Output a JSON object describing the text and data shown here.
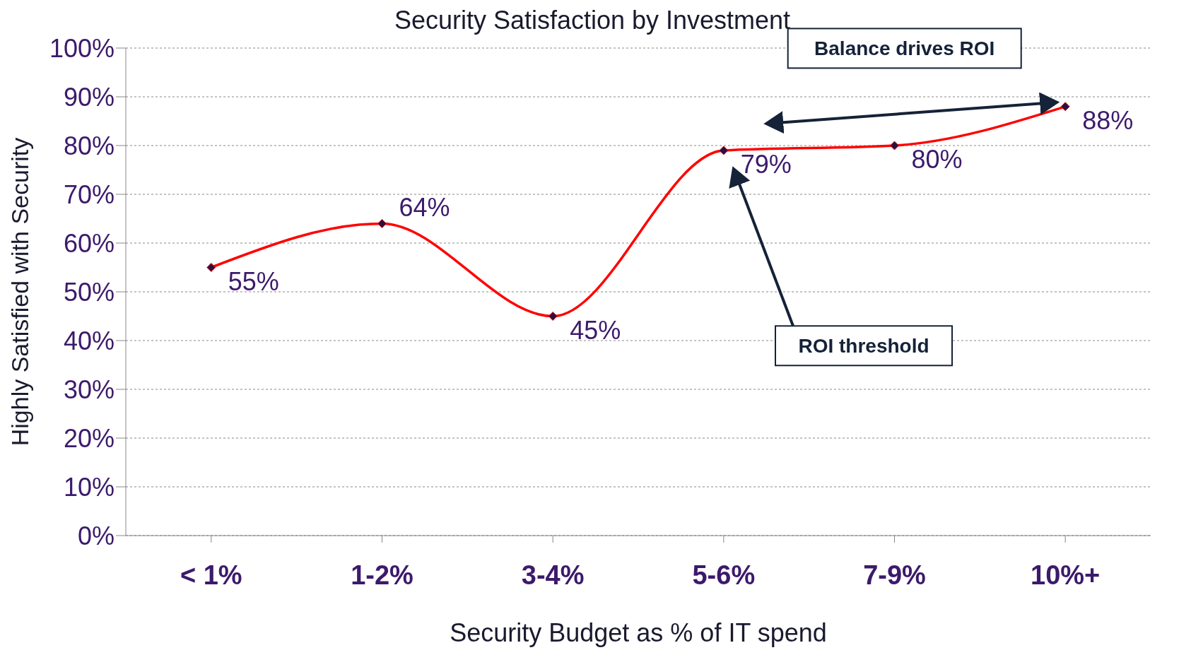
{
  "chart_data": {
    "type": "line",
    "title": "Security Satisfaction by Investment",
    "xlabel": "Security Budget as % of IT spend",
    "ylabel": "Highly Satisfied with Security",
    "categories": [
      "< 1%",
      "1-2%",
      "3-4%",
      "5-6%",
      "7-9%",
      "10%+"
    ],
    "series": [
      {
        "color": "#ff0000",
        "values": [
          55,
          64,
          45,
          79,
          80,
          88
        ],
        "value_labels": [
          "55%",
          "64%",
          "45%",
          "79%",
          "80%",
          "88%"
        ]
      }
    ],
    "ylim": [
      0,
      100
    ],
    "yticks": [
      {
        "value": 0,
        "label": "0%"
      },
      {
        "value": 10,
        "label": "10%"
      },
      {
        "value": 20,
        "label": "20%"
      },
      {
        "value": 30,
        "label": "30%"
      },
      {
        "value": 40,
        "label": "40%"
      },
      {
        "value": 50,
        "label": "50%"
      },
      {
        "value": 60,
        "label": "60%"
      },
      {
        "value": 70,
        "label": "70%"
      },
      {
        "value": 80,
        "label": "80%"
      },
      {
        "value": 90,
        "label": "90%"
      },
      {
        "value": 100,
        "label": "100%"
      }
    ],
    "grid": "y",
    "marker": "diamond",
    "line_style": "solid",
    "legend": false,
    "annotations": [
      "Balance drives ROI",
      "ROI threshold"
    ]
  }
}
